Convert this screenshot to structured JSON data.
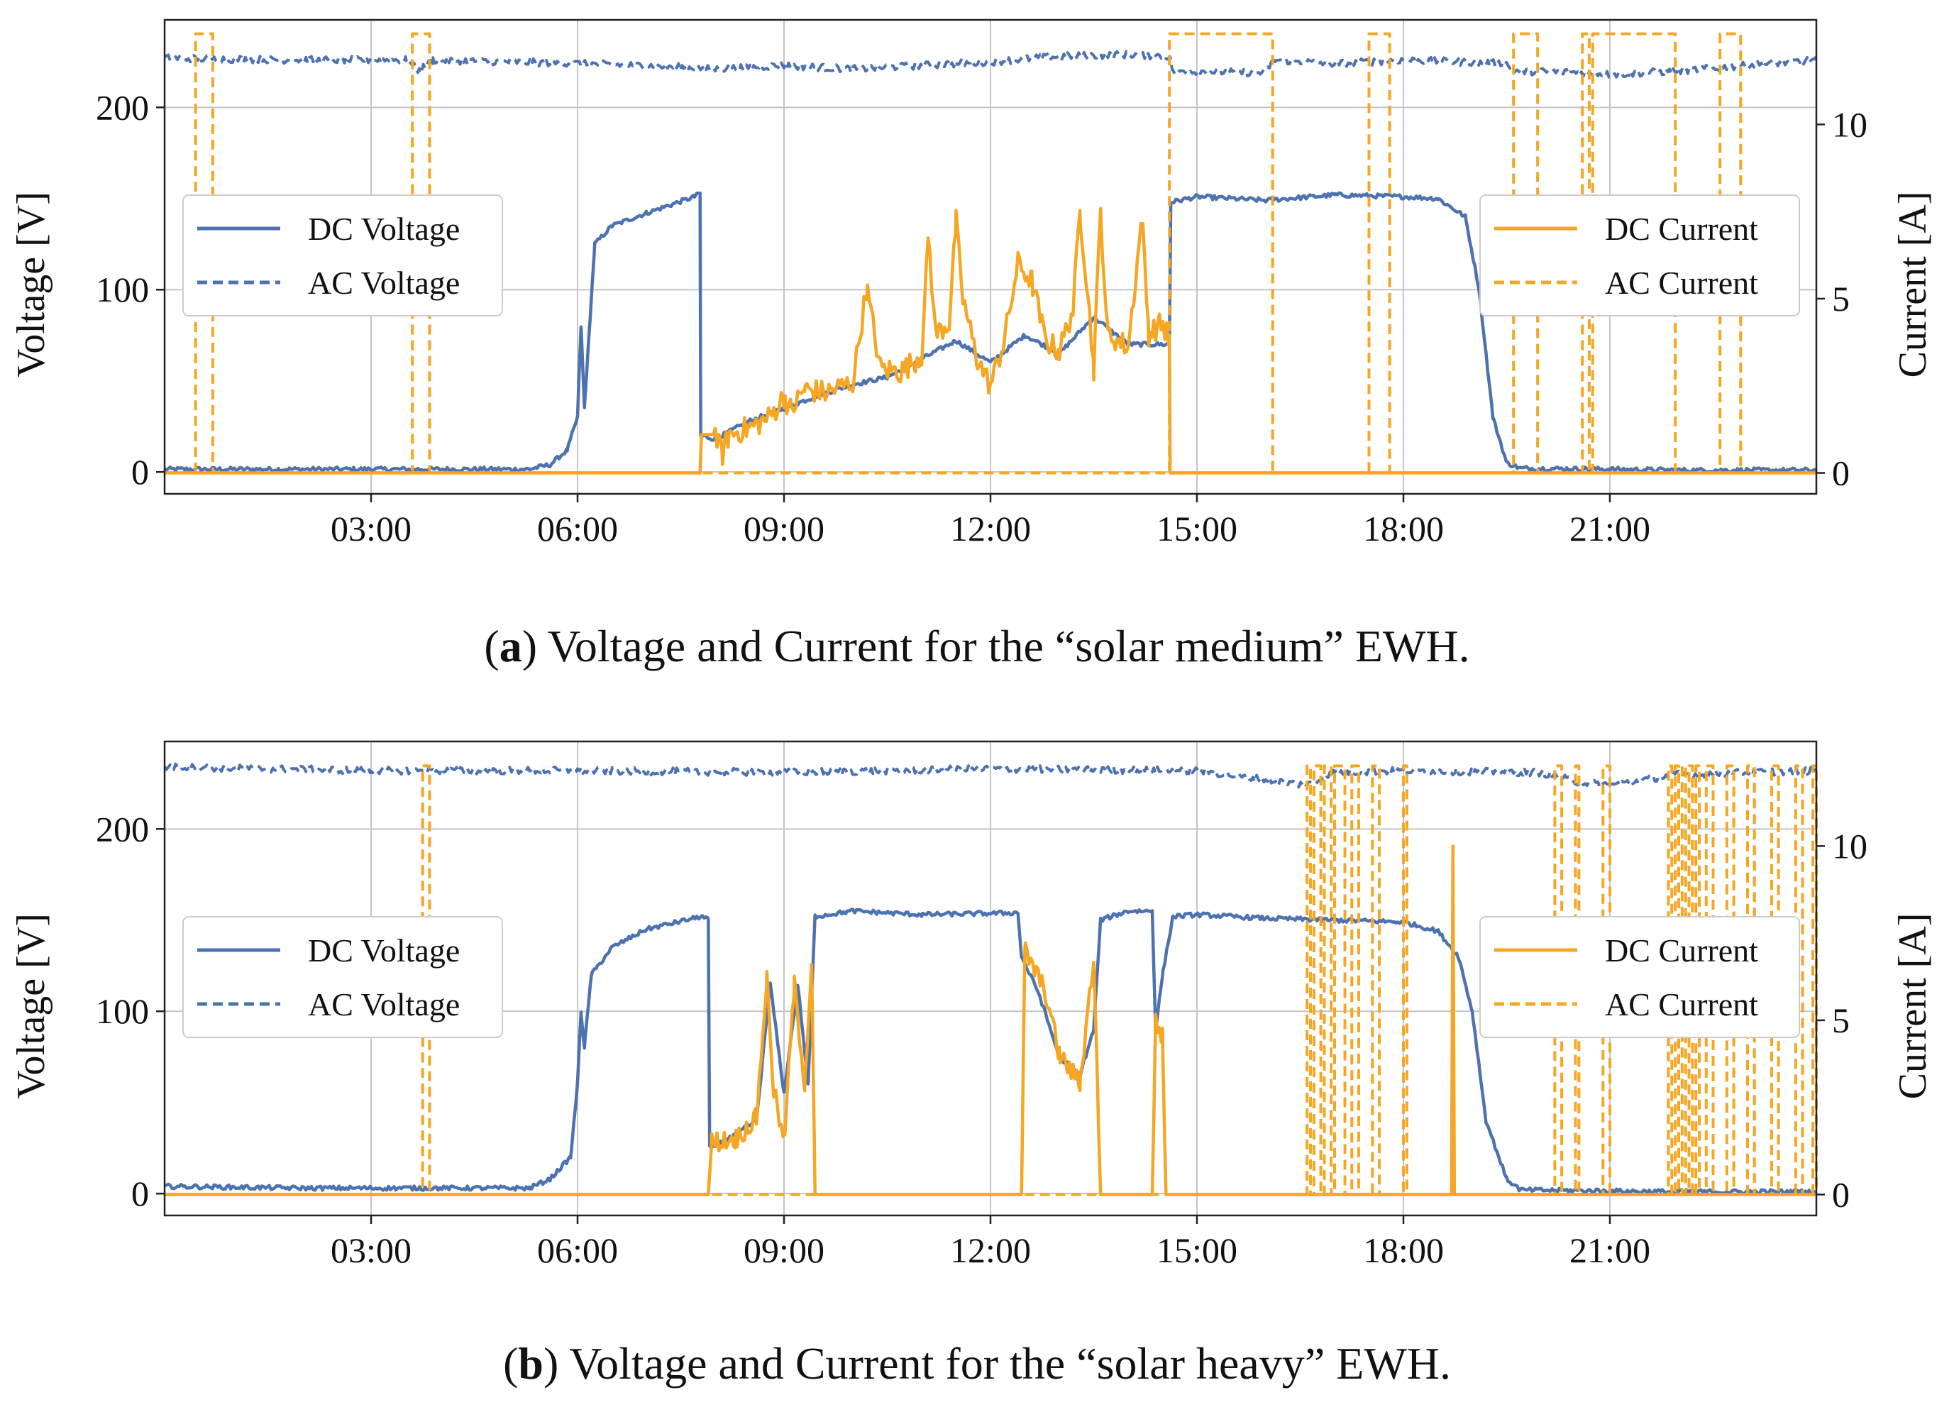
{
  "figure_colors": {
    "voltage": "#4c72b0",
    "current": "#f5a623",
    "grid": "#c4c4c4",
    "axis": "#222222"
  },
  "chart_data": [
    {
      "type": "line",
      "id": "a",
      "caption_label": "a",
      "caption_text_open": "(",
      "caption_text_rest": ") Voltage and Current for the “solar medium” EWH.",
      "x_ticks_hours": [
        3,
        6,
        9,
        12,
        15,
        18,
        21
      ],
      "x_tick_labels": [
        "03:00",
        "06:00",
        "09:00",
        "12:00",
        "15:00",
        "18:00",
        "21:00"
      ],
      "xlim_hours": [
        0,
        24
      ],
      "left_axis": {
        "label": "Voltage [V]",
        "ylim": [
          -12,
          248
        ],
        "ticks": [
          0,
          100,
          200
        ],
        "tick_labels": [
          "0",
          "100",
          "200"
        ]
      },
      "right_axis": {
        "label": "Current [A]",
        "ylim": [
          -0.6,
          13.0
        ],
        "ticks": [
          0,
          5,
          10
        ],
        "tick_labels": [
          "0",
          "5",
          "10"
        ]
      },
      "grid": true,
      "legends": {
        "voltage": {
          "placement": "center-left",
          "entries": [
            "DC Voltage",
            "AC Voltage"
          ]
        },
        "current": {
          "placement": "center-right",
          "entries": [
            "DC Current",
            "AC Current"
          ]
        }
      },
      "series": [
        {
          "name": "DC Voltage",
          "axis": "left",
          "style": "solid",
          "color": "voltage",
          "points": [
            [
              0,
              1.5
            ],
            [
              3,
              1.5
            ],
            [
              5.3,
              1.5
            ],
            [
              5.6,
              4
            ],
            [
              5.85,
              12
            ],
            [
              6.0,
              30
            ],
            [
              6.05,
              80
            ],
            [
              6.1,
              35
            ],
            [
              6.15,
              65
            ],
            [
              6.25,
              125
            ],
            [
              6.5,
              135
            ],
            [
              7,
              142
            ],
            [
              7.7,
              151
            ],
            [
              7.78,
              153
            ],
            [
              7.79,
              20
            ],
            [
              8.0,
              18
            ],
            [
              8.5,
              28
            ],
            [
              9,
              35
            ],
            [
              9.5,
              42
            ],
            [
              10,
              48
            ],
            [
              10.5,
              52
            ],
            [
              11,
              62
            ],
            [
              11.5,
              72
            ],
            [
              12,
              60
            ],
            [
              12.5,
              75
            ],
            [
              13,
              65
            ],
            [
              13.5,
              85
            ],
            [
              14,
              70
            ],
            [
              14.6,
              70
            ],
            [
              14.62,
              148
            ],
            [
              15,
              151
            ],
            [
              16,
              149
            ],
            [
              17,
              152
            ],
            [
              18,
              151
            ],
            [
              18.5,
              150
            ],
            [
              18.9,
              140
            ],
            [
              19.1,
              100
            ],
            [
              19.3,
              30
            ],
            [
              19.5,
              5
            ],
            [
              19.7,
              2
            ],
            [
              21,
              1.5
            ],
            [
              22,
              1
            ],
            [
              24,
              1
            ]
          ],
          "noise": 1.2
        },
        {
          "name": "DC Current",
          "axis": "right",
          "style": "solid",
          "color": "current",
          "points": [
            [
              0,
              0
            ],
            [
              7.78,
              0
            ],
            [
              7.8,
              1.1
            ],
            [
              8.0,
              1.1
            ],
            [
              8.1,
              0.5
            ],
            [
              8.2,
              1.1
            ],
            [
              8.5,
              1.3
            ],
            [
              8.8,
              1.6
            ],
            [
              9,
              2.2
            ],
            [
              9.1,
              1.8
            ],
            [
              9.3,
              2.4
            ],
            [
              9.6,
              2.3
            ],
            [
              10.0,
              2.6
            ],
            [
              10.2,
              5.3
            ],
            [
              10.4,
              3.0
            ],
            [
              10.7,
              2.9
            ],
            [
              11.0,
              3.4
            ],
            [
              11.1,
              6.8
            ],
            [
              11.2,
              4.0
            ],
            [
              11.4,
              4.3
            ],
            [
              11.5,
              7.2
            ],
            [
              11.6,
              5.0
            ],
            [
              11.8,
              3.3
            ],
            [
              12.0,
              2.5
            ],
            [
              12.2,
              3.8
            ],
            [
              12.4,
              6.0
            ],
            [
              12.6,
              5.5
            ],
            [
              12.8,
              3.8
            ],
            [
              13.0,
              3.5
            ],
            [
              13.2,
              4.7
            ],
            [
              13.3,
              7.5
            ],
            [
              13.4,
              5.5
            ],
            [
              13.5,
              3.0
            ],
            [
              13.6,
              7.5
            ],
            [
              13.7,
              4.0
            ],
            [
              14.0,
              3.6
            ],
            [
              14.2,
              7.3
            ],
            [
              14.3,
              4.0
            ],
            [
              14.5,
              4.3
            ],
            [
              14.6,
              3.8
            ],
            [
              14.61,
              0
            ],
            [
              24,
              0
            ]
          ],
          "noise": 0.35,
          "noise_from": 8.0,
          "noise_to": 14.6
        },
        {
          "name": "AC Voltage",
          "axis": "left",
          "style": "dashed",
          "color": "voltage",
          "points": [
            [
              0,
              227
            ],
            [
              2,
              226
            ],
            [
              3.5,
              226
            ],
            [
              3.7,
              220
            ],
            [
              3.9,
              226
            ],
            [
              5,
              225
            ],
            [
              7,
              223
            ],
            [
              8,
              221
            ],
            [
              9,
              223
            ],
            [
              10,
              221
            ],
            [
              12,
              225
            ],
            [
              13,
              228
            ],
            [
              14,
              229
            ],
            [
              14.6,
              228
            ],
            [
              14.65,
              220
            ],
            [
              16.0,
              219
            ],
            [
              16.1,
              226
            ],
            [
              17,
              224
            ],
            [
              18,
              226
            ],
            [
              19.5,
              224
            ],
            [
              19.6,
              220
            ],
            [
              20.7,
              219
            ],
            [
              21,
              218
            ],
            [
              22,
              220
            ],
            [
              24,
              226
            ]
          ],
          "noise": 2.0
        },
        {
          "name": "AC Current",
          "axis": "right",
          "style": "dashed",
          "color": "current",
          "pulses": [
            [
              0.45,
              0.7
            ],
            [
              3.6,
              3.85
            ],
            [
              14.6,
              16.1
            ],
            [
              17.5,
              17.8
            ],
            [
              19.6,
              19.95
            ],
            [
              20.6,
              20.7
            ],
            [
              20.75,
              21.95
            ],
            [
              22.6,
              22.9
            ]
          ],
          "high": 12.6,
          "low": 0
        }
      ]
    },
    {
      "type": "line",
      "id": "b",
      "caption_label": "b",
      "caption_text_open": "(",
      "caption_text_rest": ") Voltage and Current for the “solar heavy” EWH.",
      "x_ticks_hours": [
        3,
        6,
        9,
        12,
        15,
        18,
        21
      ],
      "x_tick_labels": [
        "03:00",
        "06:00",
        "09:00",
        "12:00",
        "15:00",
        "18:00",
        "21:00"
      ],
      "xlim_hours": [
        0,
        24
      ],
      "left_axis": {
        "label": "Voltage [V]",
        "ylim": [
          -12,
          248
        ],
        "ticks": [
          0,
          100,
          200
        ],
        "tick_labels": [
          "0",
          "100",
          "200"
        ]
      },
      "right_axis": {
        "label": "Current [A]",
        "ylim": [
          -0.6,
          13.0
        ],
        "ticks": [
          0,
          5,
          10
        ],
        "tick_labels": [
          "0",
          "5",
          "10"
        ]
      },
      "grid": true,
      "legends": {
        "voltage": {
          "placement": "center-left",
          "entries": [
            "DC Voltage",
            "AC Voltage"
          ]
        },
        "current": {
          "placement": "center-right",
          "entries": [
            "DC Current",
            "AC Current"
          ]
        }
      },
      "series": [
        {
          "name": "DC Voltage",
          "axis": "left",
          "style": "solid",
          "color": "voltage",
          "points": [
            [
              0,
              4
            ],
            [
              2,
              3
            ],
            [
              5.3,
              3
            ],
            [
              5.6,
              8
            ],
            [
              5.9,
              20
            ],
            [
              6.0,
              60
            ],
            [
              6.05,
              100
            ],
            [
              6.1,
              80
            ],
            [
              6.2,
              120
            ],
            [
              6.5,
              135
            ],
            [
              7,
              145
            ],
            [
              7.8,
              152
            ],
            [
              7.9,
              150
            ],
            [
              7.92,
              25
            ],
            [
              8.2,
              30
            ],
            [
              8.6,
              40
            ],
            [
              8.8,
              115
            ],
            [
              9.0,
              55
            ],
            [
              9.2,
              115
            ],
            [
              9.35,
              60
            ],
            [
              9.45,
              152
            ],
            [
              10,
              155
            ],
            [
              11,
              153
            ],
            [
              12.4,
              154
            ],
            [
              12.45,
              130
            ],
            [
              12.7,
              110
            ],
            [
              13.0,
              75
            ],
            [
              13.3,
              65
            ],
            [
              13.5,
              90
            ],
            [
              13.6,
              150
            ],
            [
              14.0,
              155
            ],
            [
              14.35,
              155
            ],
            [
              14.4,
              90
            ],
            [
              14.5,
              120
            ],
            [
              14.65,
              152
            ],
            [
              15,
              153
            ],
            [
              16,
              151
            ],
            [
              17,
              150
            ],
            [
              18,
              149
            ],
            [
              18.5,
              144
            ],
            [
              18.8,
              130
            ],
            [
              19.0,
              100
            ],
            [
              19.2,
              40
            ],
            [
              19.5,
              8
            ],
            [
              19.7,
              2
            ],
            [
              22,
              1
            ],
            [
              24,
              1
            ]
          ],
          "noise": 1.2
        },
        {
          "name": "DC Current",
          "axis": "right",
          "style": "solid",
          "color": "current",
          "points": [
            [
              0,
              0
            ],
            [
              7.9,
              0
            ],
            [
              7.95,
              1.5
            ],
            [
              8.3,
              1.6
            ],
            [
              8.6,
              2.2
            ],
            [
              8.75,
              6.2
            ],
            [
              8.85,
              3.0
            ],
            [
              9.0,
              1.5
            ],
            [
              9.15,
              6.0
            ],
            [
              9.3,
              3.2
            ],
            [
              9.4,
              6.6
            ],
            [
              9.45,
              0
            ],
            [
              12.45,
              0
            ],
            [
              12.5,
              7.0
            ],
            [
              12.8,
              5.8
            ],
            [
              13.0,
              4.0
            ],
            [
              13.3,
              3.2
            ],
            [
              13.5,
              6.8
            ],
            [
              13.6,
              0
            ],
            [
              14.35,
              0
            ],
            [
              14.4,
              5.0
            ],
            [
              14.5,
              4.5
            ],
            [
              14.55,
              0
            ],
            [
              18.7,
              0
            ],
            [
              18.72,
              10.0
            ],
            [
              18.74,
              0
            ],
            [
              24,
              0
            ]
          ],
          "noise": 0.3,
          "noise_from": 7.95,
          "noise_to": 14.55
        },
        {
          "name": "AC Voltage",
          "axis": "left",
          "style": "dashed",
          "color": "voltage",
          "points": [
            [
              0,
              234
            ],
            [
              3,
              232
            ],
            [
              6,
              232
            ],
            [
              9,
              231
            ],
            [
              12,
              233
            ],
            [
              15,
              232
            ],
            [
              16,
              227
            ],
            [
              16.6,
              224
            ],
            [
              17,
              231
            ],
            [
              18,
              232
            ],
            [
              20,
              231
            ],
            [
              20.5,
              226
            ],
            [
              21,
              224
            ],
            [
              22,
              230
            ],
            [
              24,
              232
            ]
          ],
          "noise": 2.0
        },
        {
          "name": "AC Current",
          "axis": "right",
          "style": "dashed",
          "color": "current",
          "pulses": [
            [
              3.75,
              3.85
            ],
            [
              16.6,
              16.65
            ],
            [
              16.7,
              16.8
            ],
            [
              16.85,
              16.95
            ],
            [
              17.0,
              17.15
            ],
            [
              17.25,
              17.35
            ],
            [
              17.55,
              17.65
            ],
            [
              18.0,
              18.05
            ],
            [
              20.2,
              20.3
            ],
            [
              20.5,
              20.55
            ],
            [
              20.9,
              21.0
            ],
            [
              21.85,
              21.9
            ],
            [
              21.95,
              22.0
            ],
            [
              22.05,
              22.1
            ],
            [
              22.15,
              22.2
            ],
            [
              22.25,
              22.3
            ],
            [
              22.4,
              22.5
            ],
            [
              22.7,
              22.8
            ],
            [
              23.0,
              23.1
            ],
            [
              23.35,
              23.45
            ],
            [
              23.7,
              23.8
            ],
            [
              23.95,
              24.0
            ]
          ],
          "high": 12.3,
          "low": 0
        }
      ]
    }
  ]
}
